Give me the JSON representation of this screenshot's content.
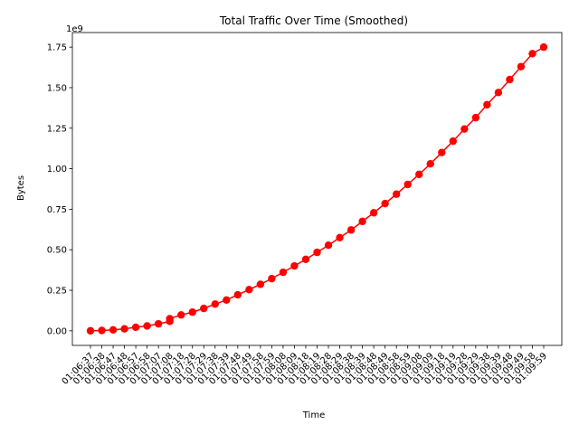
{
  "chart_data": {
    "type": "line",
    "title": "Total Traffic Over Time (Smoothed)",
    "xlabel": "Time",
    "ylabel": "Bytes",
    "y_offset_label": "1e9",
    "ylim": [
      -0.09,
      1.84
    ],
    "yticks": [
      0.0,
      0.25,
      0.5,
      0.75,
      1.0,
      1.25,
      1.5,
      1.75
    ],
    "ytick_labels": [
      "0.00",
      "0.25",
      "0.50",
      "0.75",
      "1.00",
      "1.25",
      "1.50",
      "1.75"
    ],
    "grid": false,
    "color": "#ff0000",
    "marker": "circle",
    "x": [
      "01:06:37",
      "01:06:38",
      "01:06:47",
      "01:06:48",
      "01:06:57",
      "01:06:58",
      "01:07:07",
      "01:07:08",
      "01:07:08",
      "01:07:18",
      "01:07:28",
      "01:07:29",
      "01:07:38",
      "01:07:39",
      "01:07:48",
      "01:07:49",
      "01:07:58",
      "01:07:59",
      "01:08:08",
      "01:08:09",
      "01:08:18",
      "01:08:19",
      "01:08:28",
      "01:08:29",
      "01:08:38",
      "01:08:39",
      "01:08:48",
      "01:08:49",
      "01:08:58",
      "01:08:59",
      "01:09:08",
      "01:09:09",
      "01:09:18",
      "01:09:19",
      "01:09:28",
      "01:09:29",
      "01:09:38",
      "01:09:39",
      "01:09:48",
      "01:09:49",
      "01:09:58",
      "01:09:59"
    ],
    "values": [
      0.0,
      0.002,
      0.006,
      0.012,
      0.022,
      0.03,
      0.043,
      0.058,
      0.075,
      0.098,
      0.115,
      0.138,
      0.165,
      0.19,
      0.222,
      0.254,
      0.287,
      0.322,
      0.361,
      0.4,
      0.441,
      0.484,
      0.528,
      0.575,
      0.622,
      0.675,
      0.728,
      0.785,
      0.843,
      0.903,
      0.965,
      1.03,
      1.1,
      1.17,
      1.245,
      1.315,
      1.395,
      1.47,
      1.55,
      1.63,
      1.71,
      1.75
    ],
    "xtick_labels": [
      "01:06:37",
      "01:06:38",
      "01:06:47",
      "01:06:48",
      "01:06:57",
      "01:06:58",
      "01:07:07",
      "01:07:08",
      "01:07:18",
      "01:07:28",
      "01:07:29",
      "01:07:38",
      "01:07:39",
      "01:07:48",
      "01:07:49",
      "01:07:58",
      "01:07:59",
      "01:08:08",
      "01:08:09",
      "01:08:18",
      "01:08:19",
      "01:08:28",
      "01:08:29",
      "01:08:38",
      "01:08:39",
      "01:08:48",
      "01:08:49",
      "01:08:58",
      "01:08:59",
      "01:09:08",
      "01:09:09",
      "01:09:18",
      "01:09:19",
      "01:09:28",
      "01:09:29",
      "01:09:38",
      "01:09:39",
      "01:09:48",
      "01:09:49",
      "01:09:58",
      "01:09:59"
    ]
  }
}
